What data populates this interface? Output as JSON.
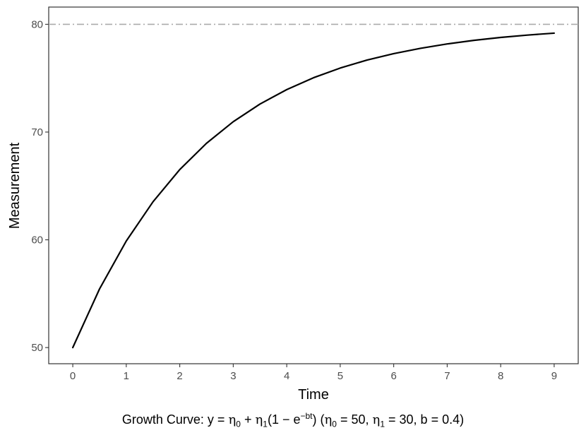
{
  "chart_data": {
    "type": "line",
    "xlabel": "Time",
    "ylabel": "Measurement",
    "xlim": [
      -0.45,
      9.45
    ],
    "ylim": [
      48.5,
      81.6
    ],
    "x_ticks": [
      0,
      1,
      2,
      3,
      4,
      5,
      6,
      7,
      8,
      9
    ],
    "y_ticks": [
      50,
      60,
      70,
      80
    ],
    "grid": false,
    "series": [
      {
        "type": "line",
        "color": "#000000",
        "x": [
          0,
          0.5,
          1,
          1.5,
          2,
          2.5,
          3,
          3.5,
          4,
          4.5,
          5,
          5.5,
          6,
          6.5,
          7,
          7.5,
          8,
          8.5,
          9
        ],
        "y": [
          50.0,
          55.44,
          59.89,
          63.53,
          66.52,
          68.96,
          70.96,
          72.6,
          73.94,
          75.04,
          75.94,
          76.68,
          77.28,
          77.77,
          78.18,
          78.51,
          78.78,
          79.0,
          79.18
        ]
      }
    ],
    "reference_line": {
      "orientation": "horizontal",
      "y": 80,
      "style": "dash-dot",
      "color": "#aaaaaa"
    }
  },
  "caption": {
    "prefix": "Growth Curve: y = ",
    "eta": "η",
    "sub0": "0",
    "sub1": "1",
    "plus": " + ",
    "paren_open": "(",
    "one_minus_e": "1 − e",
    "exponent": "−bt",
    "paren_close": ")",
    "params_open": " (",
    "eq50": " = 50, ",
    "eq30": " = 30, b = 0.4)"
  }
}
